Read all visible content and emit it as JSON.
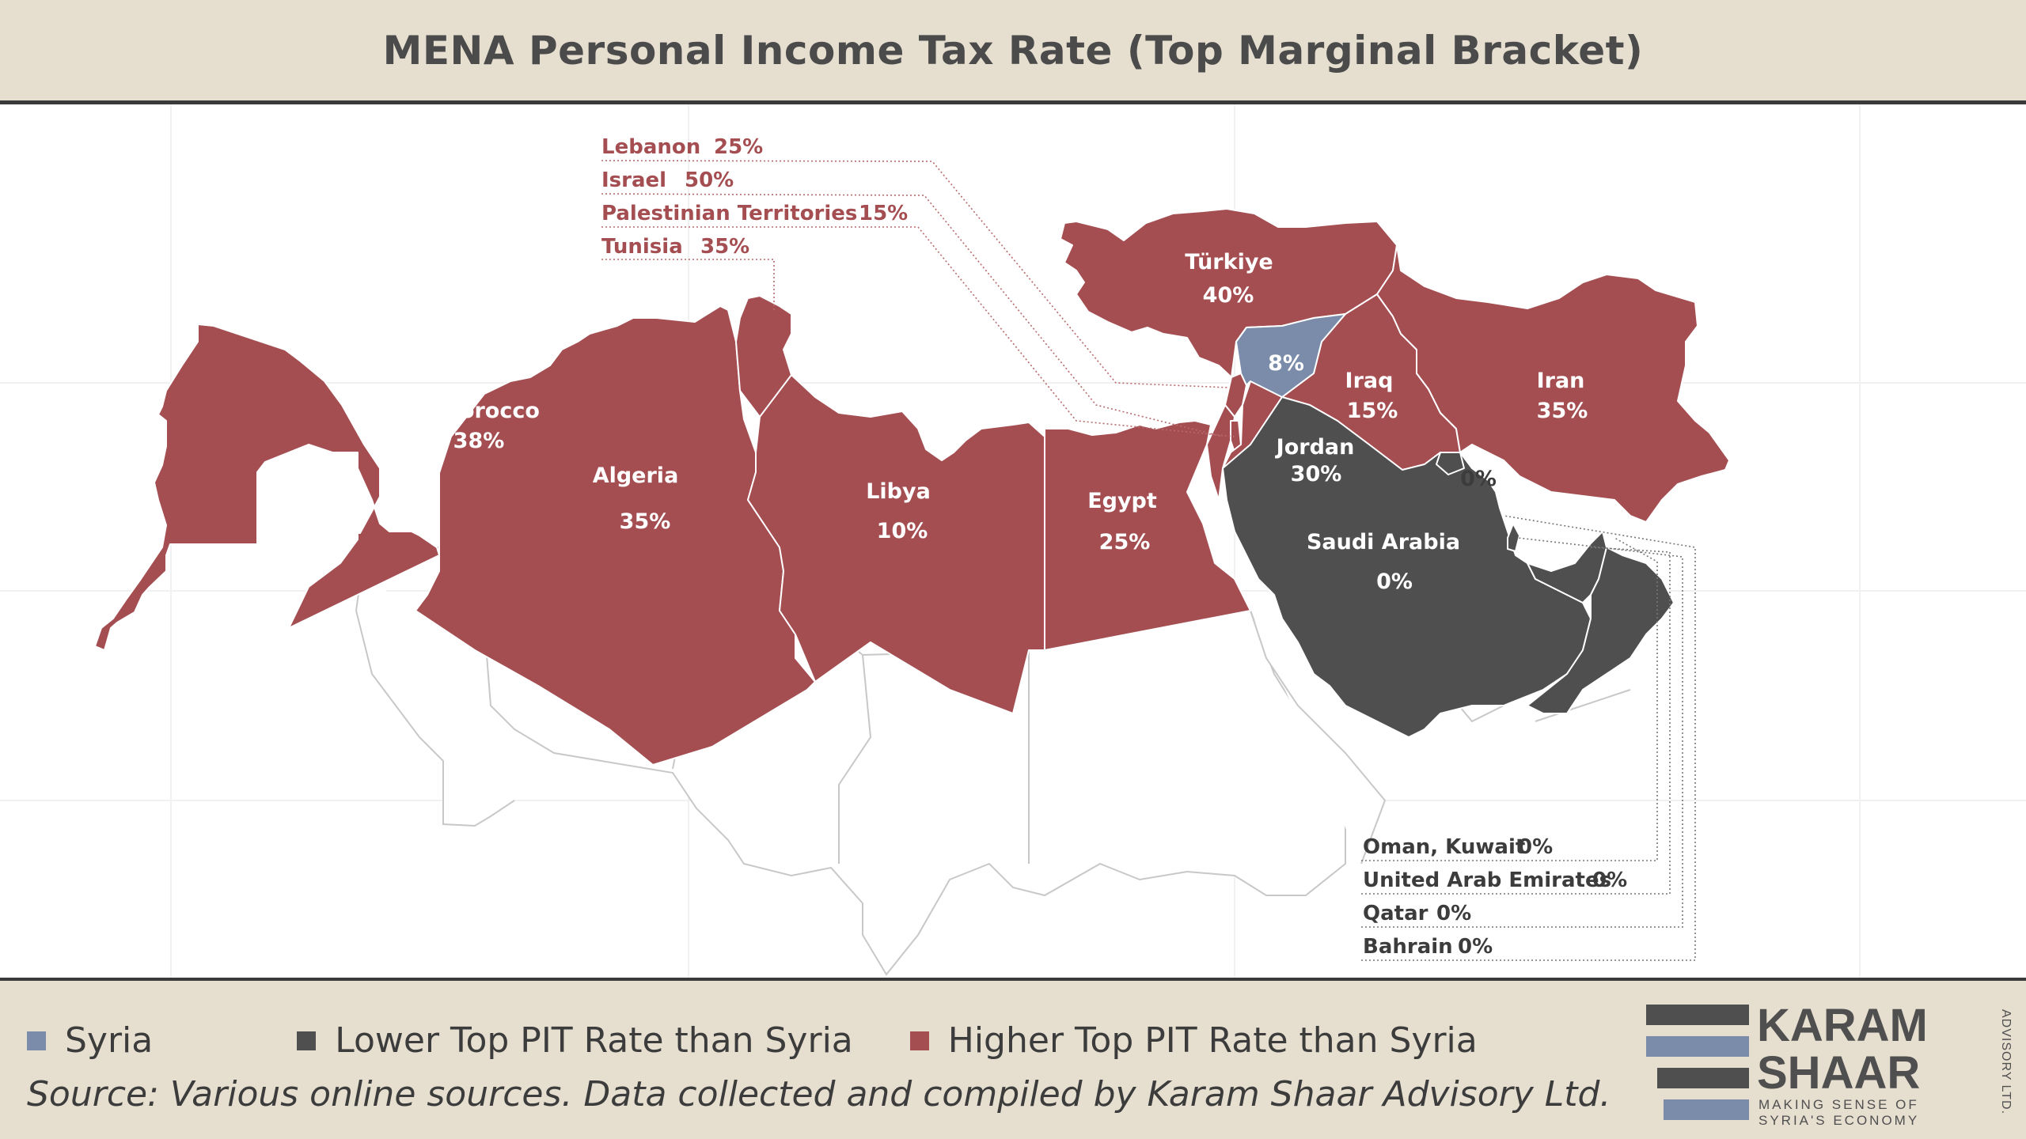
{
  "title": "MENA Personal Income Tax Rate (Top Marginal Bracket)",
  "countries": {
    "morocco": {
      "name": "Morocco",
      "rate": "38%"
    },
    "algeria": {
      "name": "Algeria",
      "rate": "35%"
    },
    "libya": {
      "name": "Libya",
      "rate": "10%"
    },
    "egypt": {
      "name": "Egypt",
      "rate": "25%"
    },
    "turkiye": {
      "name": "Türkiye",
      "rate": "40%"
    },
    "syria": {
      "rate": "8%"
    },
    "iraq": {
      "name": "Iraq",
      "rate": "15%"
    },
    "iran": {
      "name": "Iran",
      "rate": "35%"
    },
    "jordan": {
      "name": "Jordan",
      "rate": "30%"
    },
    "kuwait_inset": {
      "rate": "0%"
    },
    "saudi": {
      "name": "Saudi Arabia",
      "rate": "0%"
    }
  },
  "callouts_top": [
    {
      "name": "Lebanon",
      "rate": "25%"
    },
    {
      "name": "Israel",
      "rate": "50%"
    },
    {
      "name": "Palestinian Territories",
      "rate": "15%"
    },
    {
      "name": "Tunisia",
      "rate": "35%"
    }
  ],
  "callouts_bottom": [
    {
      "name": "Oman, Kuwait",
      "rate": "0%"
    },
    {
      "name": "United Arab Emirates",
      "rate": "0%"
    },
    {
      "name": "Qatar",
      "rate": "0%"
    },
    {
      "name": "Bahrain",
      "rate": "0%"
    }
  ],
  "legend": [
    {
      "label": "Syria",
      "color": "#7a8caa"
    },
    {
      "label": "Lower Top PIT Rate than Syria",
      "color": "#4f4f4f"
    },
    {
      "label": "Higher Top PIT Rate than Syria",
      "color": "#a44e52"
    }
  ],
  "source": "Source: Various online sources. Data collected and compiled by Karam Shaar Advisory Ltd.",
  "logo": {
    "line1": "KARAM",
    "line2": "SHAAR",
    "tagline1": "MAKING SENSE OF",
    "tagline2": "SYRIA'S ECONOMY",
    "side": "ADVISORY LTD."
  }
}
